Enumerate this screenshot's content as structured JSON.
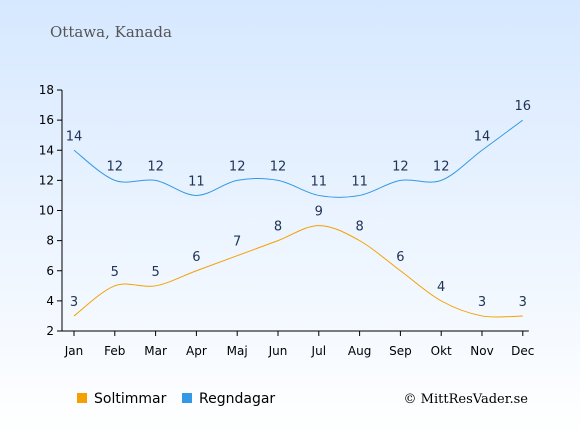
{
  "chart_data": {
    "type": "line",
    "title": "Ottawa, Kanada",
    "categories": [
      "Jan",
      "Feb",
      "Mar",
      "Apr",
      "Maj",
      "Jun",
      "Jul",
      "Aug",
      "Sep",
      "Okt",
      "Nov",
      "Dec"
    ],
    "series": [
      {
        "name": "Soltimmar",
        "color": "#f5a000",
        "values": [
          3,
          5,
          5,
          6,
          7,
          8,
          9,
          8,
          6,
          4,
          3,
          3
        ]
      },
      {
        "name": "Regndagar",
        "color": "#3399e6",
        "values": [
          14,
          12,
          12,
          11,
          12,
          12,
          11,
          11,
          12,
          12,
          14,
          16
        ]
      }
    ],
    "yticks": [
      2,
      4,
      6,
      8,
      10,
      12,
      14,
      16,
      18
    ],
    "ylim": [
      2,
      18
    ],
    "grid": false,
    "legend_position": "bottom-left",
    "copyright": "© MittResVader.se"
  },
  "colors": {
    "background_top": "#d6e8ff",
    "background_bottom": "#ffffff",
    "axis": "#000000",
    "label_text": "#1f3354"
  }
}
